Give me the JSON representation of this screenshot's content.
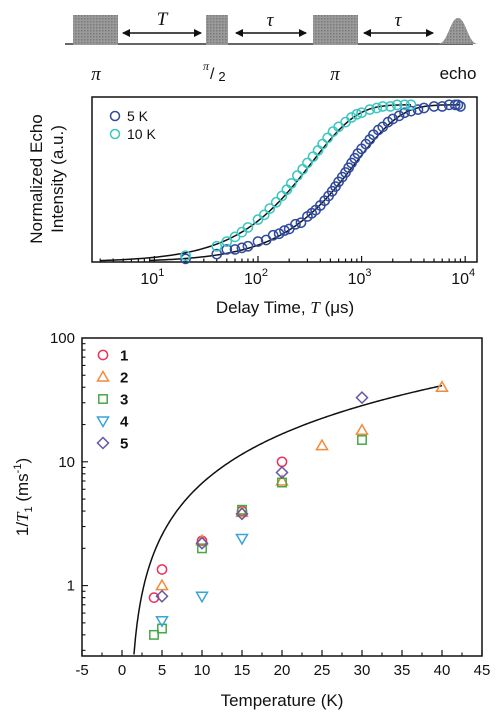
{
  "pulse_sequence": {
    "labels": [
      "π",
      "π/2",
      "π",
      "echo"
    ],
    "frac_num": "π",
    "frac_den": "2",
    "delay_1": "T",
    "delay_2": "τ",
    "delay_3": "τ"
  },
  "chart_data": [
    {
      "type": "scatter",
      "title": "",
      "xlabel": "Delay Time, T (μs)",
      "xlabel_parts": [
        "Delay Time, ",
        "T",
        " (",
        "μ",
        "s)"
      ],
      "ylabel_lines": [
        "Normalized Echo",
        "Intensity (a.u.)"
      ],
      "xscale": "log",
      "xlim": [
        2.5,
        13000
      ],
      "ylim": [
        0,
        1.05
      ],
      "x_ticks": [
        {
          "value": 10,
          "base": "10",
          "exp": "1"
        },
        {
          "value": 100,
          "base": "10",
          "exp": "2"
        },
        {
          "value": 1000,
          "base": "10",
          "exp": "3"
        },
        {
          "value": 10000,
          "base": "10",
          "exp": "4"
        }
      ],
      "legend_position": "top-left",
      "series": [
        {
          "name": "5 K",
          "color": "#2f4a9e",
          "marker": "circle",
          "points": [
            [
              20,
              0.02
            ],
            [
              40,
              0.05
            ],
            [
              50,
              0.08
            ],
            [
              60,
              0.08
            ],
            [
              70,
              0.09
            ],
            [
              80,
              0.1
            ],
            [
              100,
              0.13
            ],
            [
              120,
              0.14
            ],
            [
              140,
              0.17
            ],
            [
              160,
              0.18
            ],
            [
              180,
              0.2
            ],
            [
              200,
              0.21
            ],
            [
              230,
              0.24
            ],
            [
              260,
              0.25
            ],
            [
              300,
              0.29
            ],
            [
              330,
              0.31
            ],
            [
              360,
              0.33
            ],
            [
              400,
              0.36
            ],
            [
              440,
              0.39
            ],
            [
              480,
              0.42
            ],
            [
              520,
              0.45
            ],
            [
              560,
              0.48
            ],
            [
              600,
              0.51
            ],
            [
              650,
              0.54
            ],
            [
              700,
              0.57
            ],
            [
              750,
              0.6
            ],
            [
              800,
              0.63
            ],
            [
              860,
              0.66
            ],
            [
              920,
              0.69
            ],
            [
              1000,
              0.72
            ],
            [
              1100,
              0.75
            ],
            [
              1200,
              0.78
            ],
            [
              1300,
              0.81
            ],
            [
              1450,
              0.84
            ],
            [
              1600,
              0.86
            ],
            [
              1800,
              0.89
            ],
            [
              2000,
              0.91
            ],
            [
              2300,
              0.93
            ],
            [
              2600,
              0.95
            ],
            [
              3000,
              0.96
            ],
            [
              3500,
              0.97
            ],
            [
              4000,
              0.98
            ],
            [
              5000,
              0.99
            ],
            [
              6000,
              0.99
            ],
            [
              7000,
              1.0
            ],
            [
              8000,
              1.0
            ],
            [
              8500,
              1.0
            ],
            [
              9000,
              0.99
            ]
          ]
        },
        {
          "name": "10 K",
          "color": "#3cc6c0",
          "marker": "circle",
          "points": [
            [
              20,
              0.04
            ],
            [
              40,
              0.1
            ],
            [
              50,
              0.13
            ],
            [
              60,
              0.16
            ],
            [
              70,
              0.19
            ],
            [
              80,
              0.22
            ],
            [
              100,
              0.27
            ],
            [
              115,
              0.3
            ],
            [
              130,
              0.34
            ],
            [
              150,
              0.38
            ],
            [
              170,
              0.42
            ],
            [
              190,
              0.46
            ],
            [
              210,
              0.5
            ],
            [
              240,
              0.55
            ],
            [
              270,
              0.59
            ],
            [
              300,
              0.63
            ],
            [
              340,
              0.67
            ],
            [
              380,
              0.71
            ],
            [
              420,
              0.75
            ],
            [
              470,
              0.79
            ],
            [
              530,
              0.83
            ],
            [
              600,
              0.86
            ],
            [
              700,
              0.89
            ],
            [
              800,
              0.92
            ],
            [
              900,
              0.94
            ],
            [
              1000,
              0.95
            ],
            [
              1200,
              0.97
            ],
            [
              1400,
              0.98
            ],
            [
              1600,
              0.99
            ],
            [
              1900,
              0.99
            ],
            [
              2200,
              1.0
            ],
            [
              2600,
              1.0
            ],
            [
              3000,
              1.0
            ]
          ]
        }
      ],
      "fits": [
        {
          "name": "fit-5K",
          "color": "#111111",
          "T1_us": 880,
          "x_range": [
            9,
            9000
          ]
        },
        {
          "name": "fit-10K",
          "color": "#111111",
          "T1_us": 330,
          "x_range": [
            3,
            3000
          ]
        }
      ]
    },
    {
      "type": "scatter",
      "title": "",
      "xlabel": "Temperature (K)",
      "ylabel_parts": [
        "1/",
        "T",
        "1",
        " (ms",
        "-1",
        ")"
      ],
      "yscale": "log",
      "xlim": [
        -5,
        45
      ],
      "ylim": [
        0.27,
        100
      ],
      "x_ticks": [
        -5,
        0,
        5,
        10,
        15,
        20,
        25,
        30,
        35,
        40,
        45
      ],
      "y_ticks": [
        {
          "value": 1,
          "label": "1"
        },
        {
          "value": 10,
          "label": "10"
        },
        {
          "value": 100,
          "label": "100"
        }
      ],
      "legend_position": "top-left",
      "series": [
        {
          "name": "1",
          "color": "#e8325a",
          "marker": "circle",
          "points": [
            [
              4,
              0.8
            ],
            [
              5,
              1.35
            ],
            [
              10,
              2.3
            ],
            [
              15,
              4.0
            ],
            [
              20,
              10.0
            ]
          ]
        },
        {
          "name": "2",
          "color": "#f08a3c",
          "marker": "triangle-up",
          "points": [
            [
              5,
              1.0
            ],
            [
              10,
              2.3
            ],
            [
              15,
              3.9
            ],
            [
              20,
              7.0
            ],
            [
              25,
              13.5
            ],
            [
              30,
              18.0
            ],
            [
              40,
              40.0
            ]
          ]
        },
        {
          "name": "3",
          "color": "#45a845",
          "marker": "square",
          "points": [
            [
              4,
              0.4
            ],
            [
              5,
              0.45
            ],
            [
              10,
              2.0
            ],
            [
              15,
              4.1
            ],
            [
              20,
              6.8
            ],
            [
              30,
              15.0
            ]
          ]
        },
        {
          "name": "4",
          "color": "#3aa3d8",
          "marker": "triangle-down",
          "points": [
            [
              5,
              0.52
            ],
            [
              10,
              0.82
            ],
            [
              15,
              2.4
            ]
          ]
        },
        {
          "name": "5",
          "color": "#6656a8",
          "marker": "diamond",
          "points": [
            [
              5,
              0.82
            ],
            [
              10,
              2.2
            ],
            [
              15,
              3.8
            ],
            [
              20,
              8.2
            ],
            [
              30,
              33.0
            ]
          ]
        }
      ],
      "fit": {
        "name": "fit-curve",
        "color": "#111111",
        "x_range": [
          1.3,
          40
        ]
      }
    }
  ]
}
